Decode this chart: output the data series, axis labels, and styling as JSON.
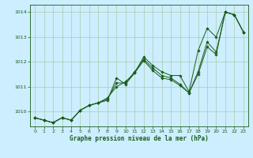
{
  "title": "Graphe pression niveau de la mer (hPa)",
  "bg_color": "#cceeff",
  "grid_color": "#aaccaa",
  "line_color": "#1a5c1a",
  "marker_color": "#1a5c1a",
  "xlim": [
    -0.5,
    23.5
  ],
  "ylim": [
    1009.4,
    1014.3
  ],
  "yticks": [
    1010,
    1011,
    1012,
    1013,
    1014
  ],
  "xticks": [
    0,
    1,
    2,
    3,
    4,
    5,
    6,
    7,
    8,
    9,
    10,
    11,
    12,
    13,
    14,
    15,
    16,
    17,
    18,
    19,
    20,
    21,
    22,
    23
  ],
  "series": [
    [
      1009.75,
      1009.65,
      1009.55,
      1009.75,
      1009.65,
      1010.05,
      1010.25,
      1010.35,
      1010.45,
      1011.35,
      1011.1,
      1011.55,
      1012.2,
      1011.85,
      1011.6,
      1011.45,
      1011.45,
      1010.8,
      1012.45,
      1013.35,
      1013.0,
      1014.0,
      1013.9,
      1013.2
    ],
    [
      1009.75,
      1009.65,
      1009.55,
      1009.75,
      1009.65,
      1010.05,
      1010.25,
      1010.35,
      1010.5,
      1011.15,
      1011.15,
      1011.6,
      1012.1,
      1011.75,
      1011.45,
      1011.35,
      1011.1,
      1010.75,
      1011.6,
      1012.8,
      1012.4,
      1014.0,
      1013.9,
      1013.2
    ],
    [
      1009.75,
      1009.65,
      1009.55,
      1009.75,
      1009.65,
      1010.05,
      1010.25,
      1010.35,
      1010.55,
      1011.0,
      1011.2,
      1011.55,
      1012.05,
      1011.65,
      1011.35,
      1011.28,
      1011.05,
      1010.75,
      1011.5,
      1012.6,
      1012.3,
      1014.0,
      1013.9,
      1013.2
    ]
  ]
}
